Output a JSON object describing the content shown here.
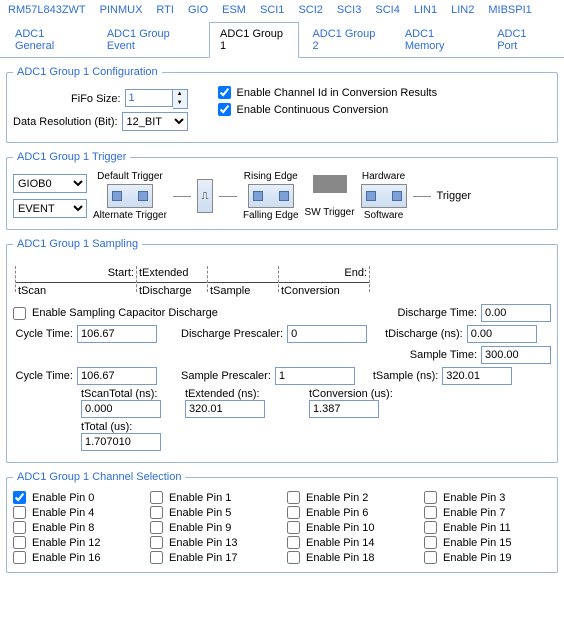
{
  "topnav": [
    "RM57L843ZWT",
    "PINMUX",
    "RTI",
    "GIO",
    "ESM",
    "SCI1",
    "SCI2",
    "SCI3",
    "SCI4",
    "LIN1",
    "LIN2",
    "MIBSPI1"
  ],
  "tabs": [
    "ADC1 General",
    "ADC1 Group Event",
    "ADC1 Group 1",
    "ADC1 Group 2",
    "ADC1 Memory",
    "ADC1 Port"
  ],
  "activeTab": 2,
  "config": {
    "legend": "ADC1 Group 1 Configuration",
    "fifo_label": "FiFo Size:",
    "fifo_value": "1",
    "res_label": "Data Resolution (Bit):",
    "res_value": "12_BIT",
    "chk1_label": "Enable Channel Id in Conversion Results",
    "chk1_checked": true,
    "chk2_label": "Enable Continuous Conversion",
    "chk2_checked": true
  },
  "trigger": {
    "legend": "ADC1 Group 1 Trigger",
    "src": "GIOB0",
    "mode": "EVENT",
    "default_label": "Default Trigger",
    "alt_label": "Alternate Trigger",
    "rise_label": "Rising Edge",
    "fall_label": "Falling Edge",
    "hw_label": "Hardware",
    "sw_label": "Software",
    "swtrig_label": "SW Trigger",
    "out_label": "Trigger"
  },
  "sampling": {
    "legend": "ADC1 Group 1 Sampling",
    "tscan": "tScan",
    "start": "Start:",
    "textended": "tExtended",
    "tdischarge": "tDischarge",
    "tsample": "tSample",
    "tconversion": "tConversion",
    "end": "End:",
    "en_disc_label": "Enable Sampling Capacitor Discharge",
    "en_disc_checked": false,
    "disc_time_label": "Discharge Time:",
    "disc_time": "0.00",
    "cycle_label": "Cycle Time:",
    "cycle1": "106.67",
    "disc_presc_label": "Discharge Prescaler:",
    "disc_presc": "0",
    "tdisc_ns_label": "tDischarge (ns):",
    "tdisc_ns": "0.00",
    "samp_time_label": "Sample Time:",
    "samp_time": "300.00",
    "cycle2": "106.67",
    "samp_presc_label": "Sample Prescaler:",
    "samp_presc": "1",
    "tsamp_ns_label": "tSample (ns):",
    "tsamp_ns": "320.01",
    "tscantot_label": "tScanTotal (ns):",
    "tscantot": "0.000",
    "text_ns_label": "tExtended (ns):",
    "text_ns": "320.01",
    "tconv_us_label": "tConversion (us):",
    "tconv_us": "1.387",
    "ttotal_label": "tTotal (us):",
    "ttotal": "1.707010"
  },
  "channels": {
    "legend": "ADC1 Group 1 Channel Selection",
    "prefix": "Enable Pin ",
    "count": 20,
    "checked": [
      0
    ]
  }
}
